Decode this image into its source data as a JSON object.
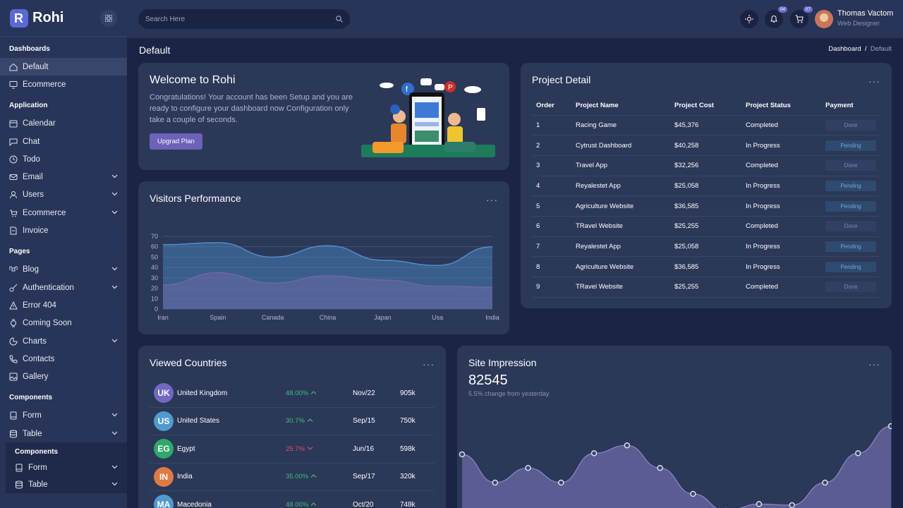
{
  "brand": {
    "name": "Rohi"
  },
  "sidebar": {
    "sections": [
      {
        "title": "Dashboards",
        "items": [
          {
            "label": "Default",
            "icon": "home-icon",
            "active": true
          },
          {
            "label": "Ecommerce",
            "icon": "monitor-icon"
          }
        ]
      },
      {
        "title": "Application",
        "items": [
          {
            "label": "Calendar",
            "icon": "calendar-icon"
          },
          {
            "label": "Chat",
            "icon": "chat-icon"
          },
          {
            "label": "Todo",
            "icon": "clock-icon"
          },
          {
            "label": "Email",
            "icon": "mail-icon",
            "chevron": true
          },
          {
            "label": "Users",
            "icon": "user-icon",
            "chevron": true
          },
          {
            "label": "Ecommerce",
            "icon": "cart-icon",
            "chevron": true
          },
          {
            "label": "Invoice",
            "icon": "invoice-icon"
          }
        ]
      },
      {
        "title": "Pages",
        "items": [
          {
            "label": "Blog",
            "icon": "command-icon",
            "chevron": true
          },
          {
            "label": "Authentication",
            "icon": "key-icon",
            "chevron": true
          },
          {
            "label": "Error 404",
            "icon": "warning-icon"
          },
          {
            "label": "Coming Soon",
            "icon": "watch-icon"
          },
          {
            "label": "Charts",
            "icon": "pie-chart-icon",
            "chevron": true
          },
          {
            "label": "Contacts",
            "icon": "phone-icon"
          },
          {
            "label": "Gallery",
            "icon": "image-icon"
          }
        ]
      },
      {
        "title": "Components",
        "items": [
          {
            "label": "Form",
            "icon": "form-icon",
            "chevron": true
          },
          {
            "label": "Table",
            "icon": "database-icon",
            "chevron": true
          }
        ]
      }
    ],
    "sub": {
      "title": "Components",
      "items": [
        {
          "label": "Form",
          "icon": "form-icon",
          "chevron": true
        },
        {
          "label": "Table",
          "icon": "database-icon",
          "chevron": true
        }
      ]
    }
  },
  "search": {
    "placeholder": "Search Here"
  },
  "topbar": {
    "notifications": "04",
    "cart": "07",
    "user_name": "Thomas Vactom",
    "user_role": "Web Designer"
  },
  "page": {
    "title": "Default",
    "breadcrumb_root": "Dashboard",
    "breadcrumb_sep": "/",
    "breadcrumb_current": "Default"
  },
  "welcome": {
    "title": "Welcome to Rohi",
    "text": "Congratulations! Your account has been Setup and you are ready to configure your dashboard now Configuration only take a couple of seconds.",
    "button": "Upgrad Plan"
  },
  "project": {
    "title": "Project Detail",
    "more": "···",
    "headers": [
      "Order",
      "Project Name",
      "Project Cost",
      "Project Status",
      "Payment"
    ],
    "rows": [
      [
        "1",
        "Racing Game",
        "$45,376",
        "Completed",
        "Done"
      ],
      [
        "2",
        "Cytrust Dashboard",
        "$40,258",
        "In Progress",
        "Pending"
      ],
      [
        "3",
        "Travel App",
        "$32,256",
        "Completed",
        "Done"
      ],
      [
        "4",
        "Reyalestet App",
        "$25,058",
        "In Progress",
        "Pending"
      ],
      [
        "5",
        "Agriculture Website",
        "$36,585",
        "In Progress",
        "Pending"
      ],
      [
        "6",
        "TRavel Website",
        "$25,255",
        "Completed",
        "Done"
      ],
      [
        "7",
        "Reyalestet App",
        "$25,058",
        "In Progress",
        "Pending"
      ],
      [
        "8",
        "Agriculture Website",
        "$36,585",
        "In Progress",
        "Pending"
      ],
      [
        "9",
        "TRavel Website",
        "$25,255",
        "Completed",
        "Done"
      ]
    ]
  },
  "visitors": {
    "title": "Visitors Performance",
    "more": "···"
  },
  "chart_data": [
    {
      "type": "area",
      "title": "Visitors Performance",
      "categories": [
        "Iran",
        "Spain",
        "Canada",
        "China",
        "Japan",
        "Usa",
        "India"
      ],
      "ylim": [
        0,
        70
      ],
      "yticks": [
        0,
        10,
        20,
        30,
        40,
        50,
        60,
        70
      ],
      "grid": true,
      "series": [
        {
          "values": [
            62,
            64,
            50,
            61,
            47,
            42,
            60
          ],
          "color": "#4d8ec9"
        },
        {
          "values": [
            23,
            35,
            25,
            32,
            28,
            22,
            21
          ],
          "color": "#6d67a8"
        }
      ]
    },
    {
      "type": "area",
      "title": "Site Impression",
      "values": [
        60,
        35,
        48,
        35,
        61,
        68,
        48,
        25,
        10,
        16,
        15,
        35,
        61,
        85
      ],
      "ylim": [
        0,
        100
      ],
      "color": "#6c6aa6"
    }
  ],
  "countries": {
    "title": "Viewed Countries",
    "more": "···",
    "rows": [
      {
        "code": "UK",
        "name": "United Kingdom",
        "pct": "48.00%",
        "trend": "up",
        "date": "Nov/22",
        "value": "905k",
        "color": "#7169c1"
      },
      {
        "code": "US",
        "name": "United States",
        "pct": "30.7%",
        "trend": "up",
        "date": "Sep/15",
        "value": "750k",
        "color": "#4f9bd0"
      },
      {
        "code": "EG",
        "name": "Egypt",
        "pct": "25.7%",
        "trend": "down",
        "date": "Jun/16",
        "value": "598k",
        "color": "#2fa86a"
      },
      {
        "code": "IN",
        "name": "India",
        "pct": "35.00%",
        "trend": "up",
        "date": "Sep/17",
        "value": "320k",
        "color": "#e07a44"
      },
      {
        "code": "MA",
        "name": "Macedonia",
        "pct": "48.00%",
        "trend": "up",
        "date": "Oct/20",
        "value": "748k",
        "color": "#4f9bd0"
      }
    ]
  },
  "impression": {
    "title": "Site Impression",
    "more": "···",
    "value": "82545",
    "change": "5.5% change from yesterday"
  },
  "colors": {
    "up": "#3cc07c",
    "down": "#e05260",
    "accent": "#6c62b8"
  }
}
